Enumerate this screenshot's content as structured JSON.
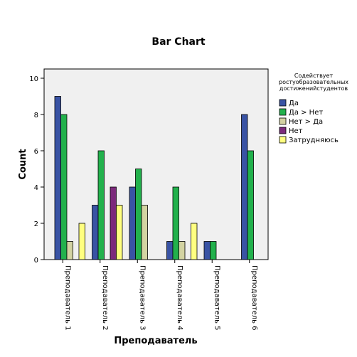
{
  "chart_data": {
    "type": "bar",
    "title": "Bar Chart",
    "xlabel": "Преподаватель",
    "ylabel": "Count",
    "ylim": [
      0,
      10
    ],
    "yticks": [
      0,
      2,
      4,
      6,
      8,
      10
    ],
    "grid": false,
    "legend_position": "right",
    "legend_title": [
      "Содействует",
      "ростуобразовательных",
      "достиженийстудентов"
    ],
    "categories": [
      "Преподаватель 1",
      "Преподаватель 2",
      "Преподаватель 3",
      "Преподаватель 4",
      "Преподаватель 5",
      "Преподаватель 6"
    ],
    "series": [
      {
        "name": "Да",
        "color": "#3953a4",
        "values": [
          9,
          3,
          4,
          1,
          1,
          8
        ]
      },
      {
        "name": "Да > Нет",
        "color": "#22b14c",
        "values": [
          8,
          6,
          5,
          4,
          1,
          6
        ]
      },
      {
        "name": "Нет > Да",
        "color": "#d3d3a2",
        "values": [
          1,
          0,
          3,
          1,
          0,
          0
        ]
      },
      {
        "name": "Нет",
        "color": "#7b2a7b",
        "values": [
          0,
          4,
          0,
          0,
          0,
          0
        ]
      },
      {
        "name": "Затрудняюсь",
        "color": "#ffff80",
        "values": [
          2,
          3,
          0,
          2,
          0,
          0
        ]
      }
    ],
    "plot_background": "#f0f0f0"
  }
}
